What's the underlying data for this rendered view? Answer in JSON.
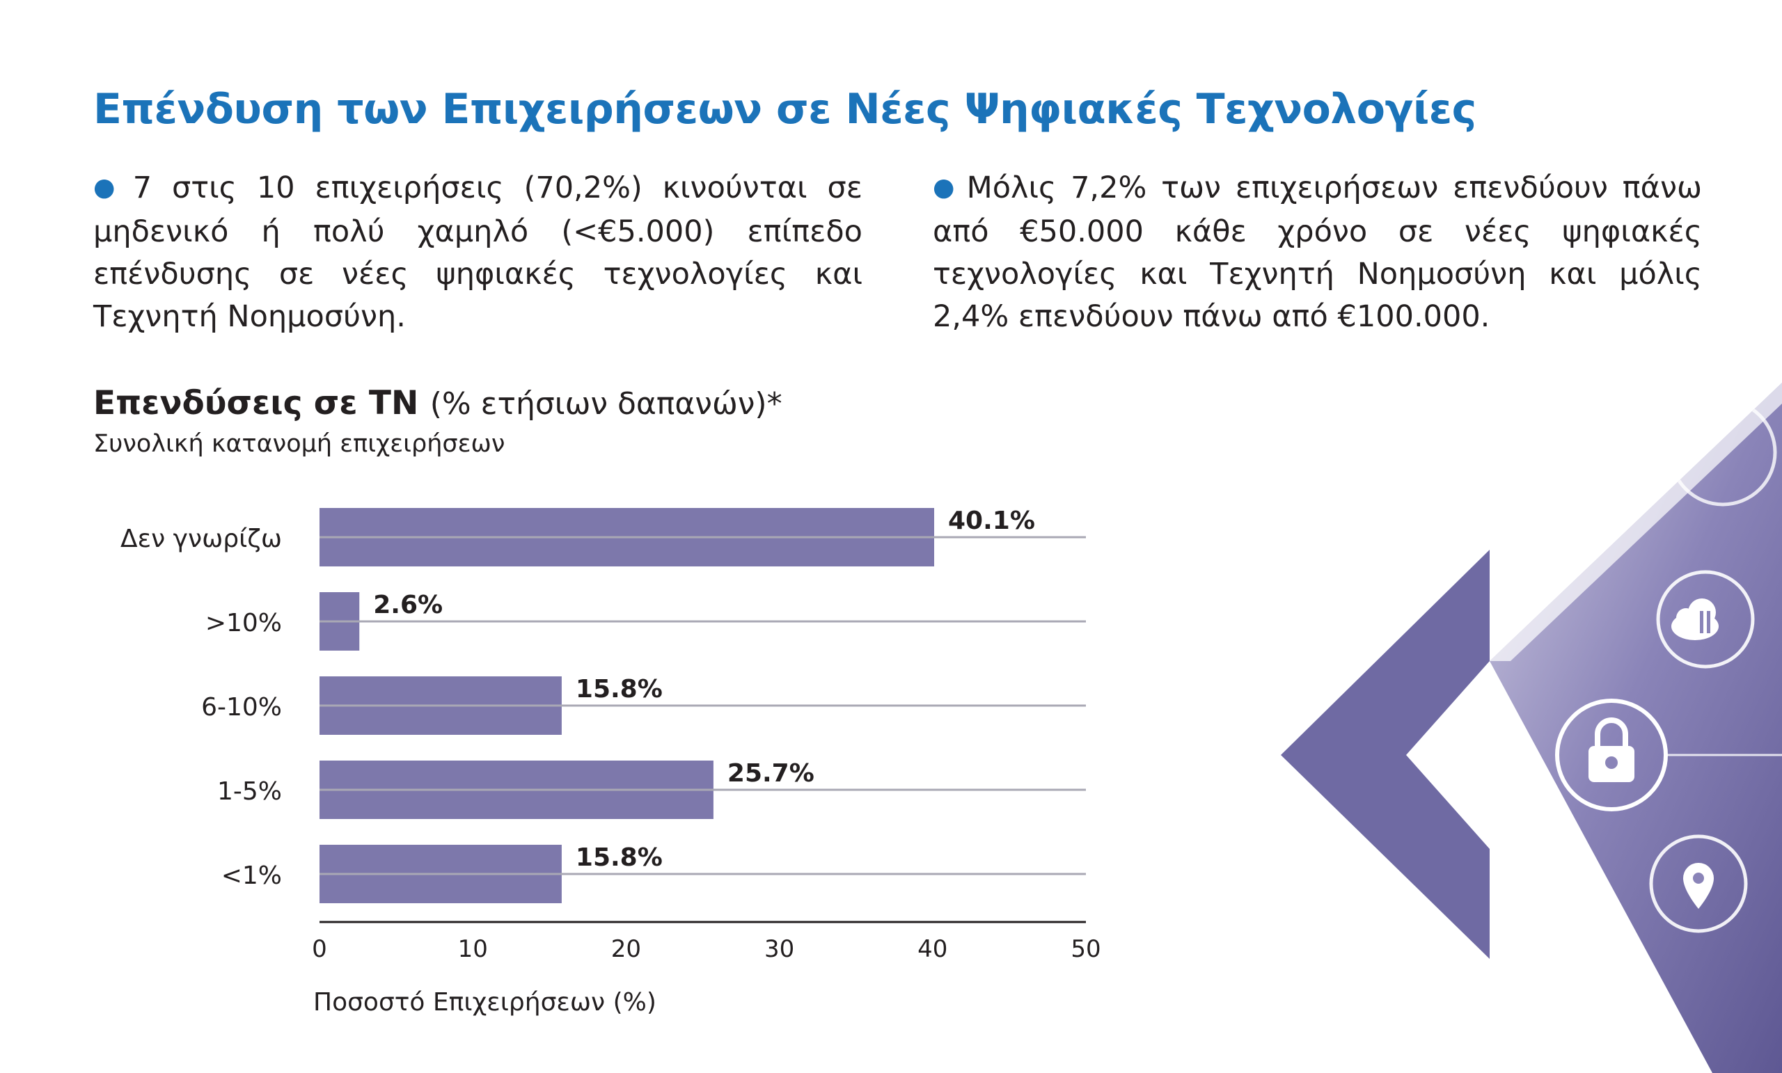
{
  "header": {
    "title": "Επένδυση των Επιχειρήσεων σε Νέες Ψηφιακές Τεχνολογίες"
  },
  "paragraphs": [
    {
      "bullet": "●",
      "text": "7 στις 10 επιχειρήσεις (70,2%) κινούνται σε μηδενικό ή πολύ χαμηλό (<€5.000) επίπεδο επένδυσης σε νέες ψηφιακές τεχνολογίες και Τεχνητή Νοημοσύνη."
    },
    {
      "bullet": "●",
      "text": "Μόλις 7,2% των επιχειρήσεων επενδύουν πάνω από €50.000 κάθε χρόνο σε νέες ψηφιακές τεχνολογίες και Τεχνητή Νοημοσύνη και μόλις 2,4% επενδύουν πάνω από €100.000."
    }
  ],
  "chart_data": {
    "type": "bar",
    "orientation": "horizontal",
    "title": "Επενδύσεις σε ΤΝ",
    "title_suffix": "(% ετήσιων δαπανών)*",
    "subtitle": "Συνολική κατανομή επιχειρήσεων",
    "categories": [
      "Δεν γνωρίζω",
      ">10%",
      "6-10%",
      "1-5%",
      "<1%"
    ],
    "values": [
      40.1,
      2.6,
      15.8,
      25.7,
      15.8
    ],
    "value_labels": [
      "40.1%",
      "2.6%",
      "15.8%",
      "25.7%",
      "15.8%"
    ],
    "xlabel": "Ποσοστό Επιχειρήσεων (%)",
    "ylabel": "",
    "xlim": [
      0,
      50
    ],
    "xticks": [
      "0",
      "10",
      "20",
      "30",
      "40",
      "50"
    ],
    "grid": true,
    "bar_color": "#7d78ab",
    "grid_color": "#a9a8b4"
  },
  "decor": {
    "accent_dark": "#6f6aa3",
    "accent_light": "#c9c6dd",
    "icons": [
      "cloud-transfer-icon",
      "padlock-icon",
      "location-pin-icon"
    ]
  }
}
